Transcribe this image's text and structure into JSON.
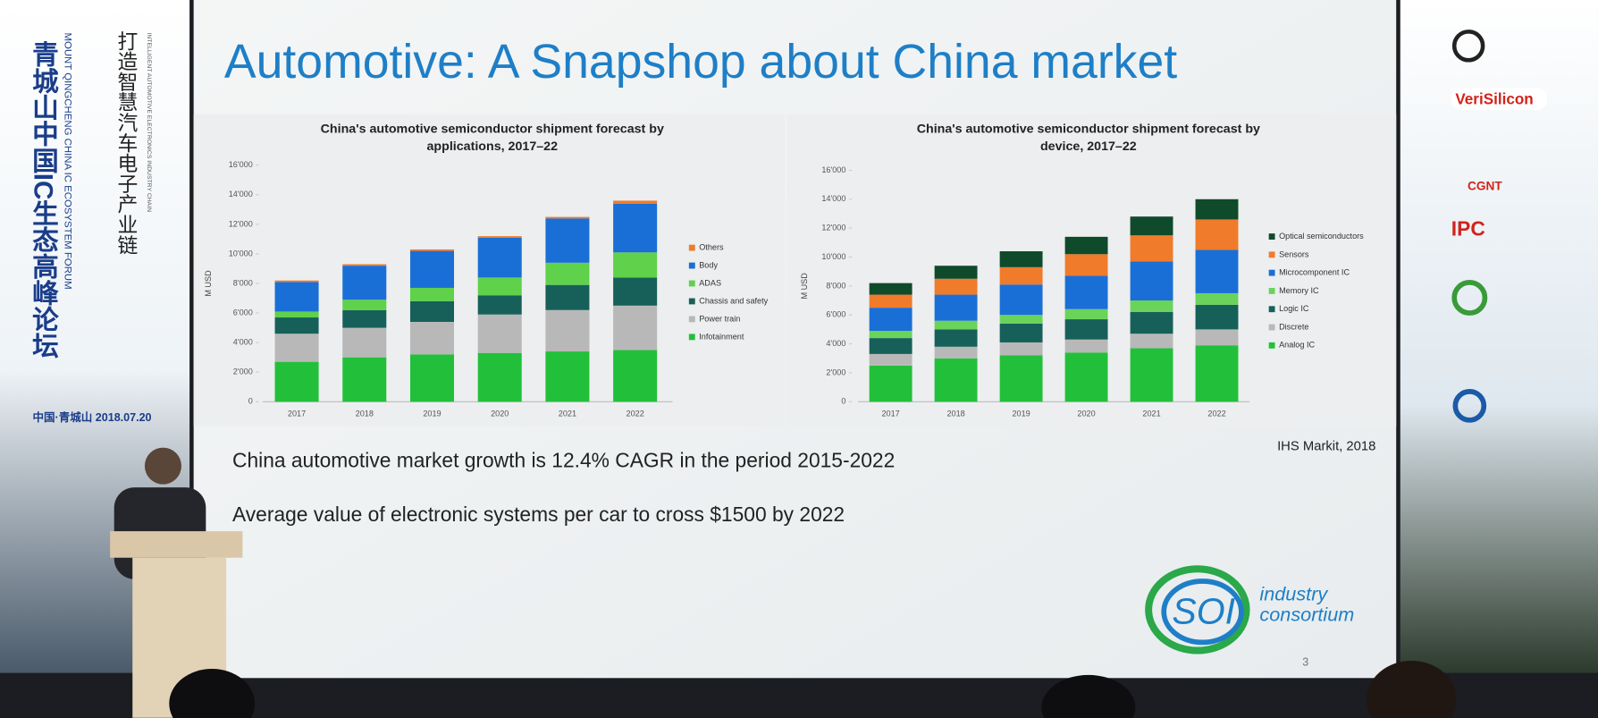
{
  "slide_title": "Automotive: A Snapshop about China market",
  "bullets": [
    "China automotive market growth is 12.4% CAGR in the period 2015-2022",
    "Average value of electronic systems per car to cross $1500 by 2022"
  ],
  "source": "IHS Markit, 2018",
  "page_number": "3",
  "logo": [
    "SOI",
    "industry",
    "consortium"
  ],
  "banner_left": {
    "chinese_vertical": "青城山中国IC生态高峰论坛",
    "english_vertical": "MOUNT QINGCHENG CHINA IC ECOSYSTEM FORUM",
    "theme_chinese": "打造智慧汽车电子产业链",
    "theme_english": "INTELLIGENT AUTOMOTIVE ELECTRONICS INDUSTRY CHAIN",
    "date": "中国·青城山  2018.07.20"
  },
  "sponsors": [
    "VeriSilicon",
    "CGNT",
    "IPC"
  ],
  "chart_data": [
    {
      "type": "bar",
      "stacked": true,
      "title": [
        "China's automotive semiconductor shipment forecast by",
        "applications, 2017–22"
      ],
      "y_label": "M USD",
      "categories": [
        "2017",
        "2018",
        "2019",
        "2020",
        "2021",
        "2022"
      ],
      "ylim": [
        0,
        16000
      ],
      "yticks": [
        0,
        {
          "value": 2000,
          "label": "2'000"
        },
        {
          "value": 4000,
          "label": "4'000"
        },
        {
          "value": 6000,
          "label": "6'000"
        },
        {
          "value": 8000,
          "label": "8'000"
        },
        {
          "value": 10000,
          "label": "10'000"
        },
        {
          "value": 12000,
          "label": "12'000"
        },
        {
          "value": 14000,
          "label": "14'000"
        },
        {
          "value": 16000,
          "label": "16'000"
        }
      ],
      "grid": false,
      "legend": "right",
      "series": [
        {
          "name": "Infotainment",
          "color": "#22c03a",
          "values": [
            2700,
            3000,
            3200,
            3300,
            3400,
            3500
          ]
        },
        {
          "name": "Power train",
          "color": "#b8b8b8",
          "values": [
            1900,
            2000,
            2200,
            2600,
            2800,
            3000
          ]
        },
        {
          "name": "Chassis and safety",
          "color": "#17605a",
          "values": [
            1100,
            1200,
            1400,
            1300,
            1700,
            1900
          ]
        },
        {
          "name": "ADAS",
          "color": "#5fd14a",
          "values": [
            400,
            700,
            900,
            1200,
            1500,
            1700
          ]
        },
        {
          "name": "Body",
          "color": "#1a6fd6",
          "values": [
            2000,
            2300,
            2500,
            2700,
            3000,
            3300
          ]
        },
        {
          "name": "Others",
          "color": "#f07b2a",
          "values": [
            100,
            100,
            100,
            100,
            100,
            200
          ]
        }
      ]
    },
    {
      "type": "bar",
      "stacked": true,
      "title": [
        "China's automotive semiconductor shipment forecast by",
        "device, 2017–22"
      ],
      "y_label": "M USD",
      "categories": [
        "2017",
        "2018",
        "2019",
        "2020",
        "2021",
        "2022"
      ],
      "ylim": [
        0,
        16000
      ],
      "yticks": [
        0,
        {
          "value": 2000,
          "label": "2'000"
        },
        {
          "value": 4000,
          "label": "4'000"
        },
        {
          "value": 6000,
          "label": "6'000"
        },
        {
          "value": 8000,
          "label": "8'000"
        },
        {
          "value": 10000,
          "label": "10'000"
        },
        {
          "value": 12000,
          "label": "12'000"
        },
        {
          "value": 14000,
          "label": "14'000"
        },
        {
          "value": 16000,
          "label": "16'000"
        }
      ],
      "grid": false,
      "legend": "right",
      "series": [
        {
          "name": "Analog IC",
          "color": "#22c03a",
          "values": [
            2500,
            3000,
            3200,
            3400,
            3700,
            3900
          ]
        },
        {
          "name": "Discrete",
          "color": "#b8b8b8",
          "values": [
            800,
            800,
            900,
            900,
            1000,
            1100
          ]
        },
        {
          "name": "Logic IC",
          "color": "#17605a",
          "values": [
            1100,
            1200,
            1300,
            1400,
            1500,
            1700
          ]
        },
        {
          "name": "Memory IC",
          "color": "#6ad35a",
          "values": [
            500,
            600,
            600,
            700,
            800,
            800
          ]
        },
        {
          "name": "Microcomponent IC",
          "color": "#1a6fd6",
          "values": [
            1600,
            1800,
            2100,
            2300,
            2700,
            3000
          ]
        },
        {
          "name": "Sensors",
          "color": "#f07b2a",
          "values": [
            900,
            1100,
            1200,
            1500,
            1800,
            2100
          ]
        },
        {
          "name": "Optical semiconductors",
          "color": "#0f4a2a",
          "values": [
            800,
            900,
            1100,
            1200,
            1300,
            1400
          ]
        }
      ]
    }
  ]
}
